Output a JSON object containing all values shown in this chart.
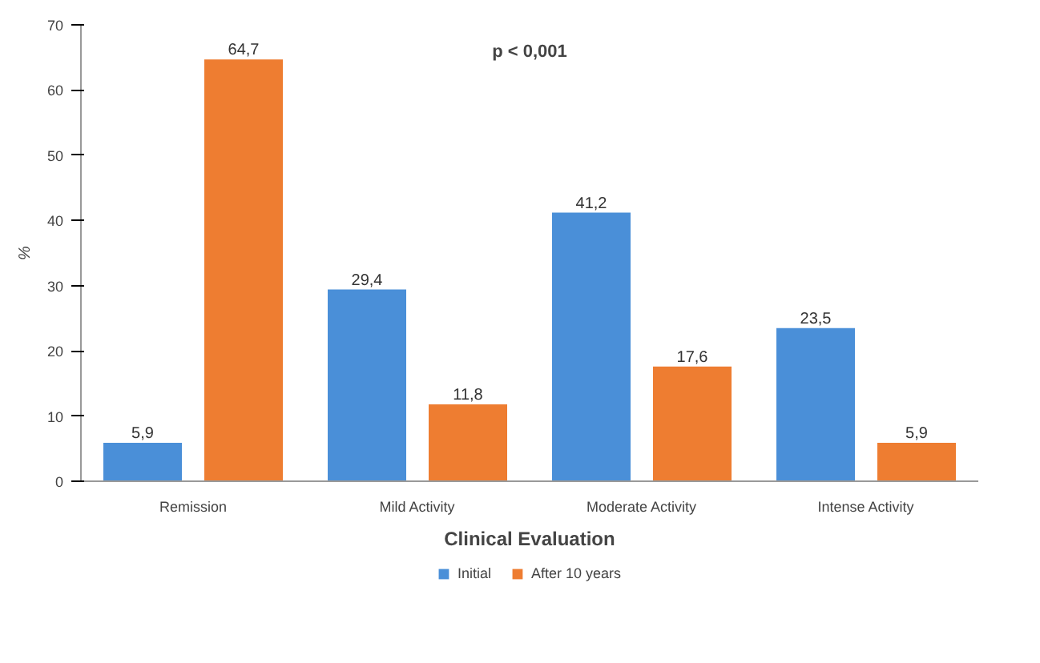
{
  "chart_data": {
    "type": "bar",
    "xlabel": "Clinical Evaluation",
    "ylabel": "%",
    "categories": [
      "Remission",
      "Mild Activity",
      "Moderate Activity",
      "Intense Activity"
    ],
    "series": [
      {
        "name": "Initial",
        "color": "#4a8fd8",
        "values": [
          5.9,
          29.4,
          41.2,
          23.5
        ],
        "value_labels": [
          "5,9",
          "29,4",
          "41,2",
          "23,5"
        ]
      },
      {
        "name": "After 10 years",
        "color": "#ee7d31",
        "values": [
          64.7,
          11.8,
          17.6,
          5.9
        ],
        "value_labels": [
          "64,7",
          "11,8",
          "17,6",
          "5,9"
        ]
      }
    ],
    "ylim": [
      0,
      70
    ],
    "yticks": [
      0,
      10,
      20,
      30,
      40,
      50,
      60,
      70
    ],
    "annotations": [
      "p < 0,001"
    ],
    "legend": "bottom",
    "grid": false
  }
}
